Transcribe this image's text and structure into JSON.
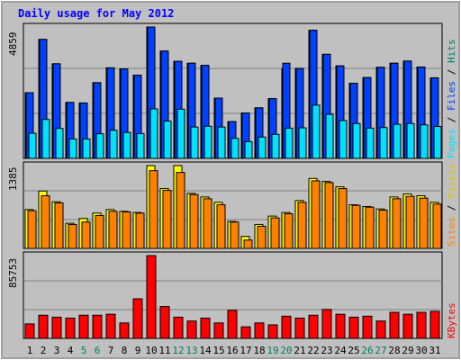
{
  "chart_data": [
    {
      "type": "bar",
      "title": "Daily usage for May 2012",
      "ymax_label": "4859",
      "legend": [
        "Pages",
        "Files",
        "Hits"
      ],
      "categories": [
        "1",
        "2",
        "3",
        "4",
        "5",
        "6",
        "7",
        "8",
        "9",
        "10",
        "11",
        "12",
        "13",
        "14",
        "15",
        "16",
        "17",
        "18",
        "19",
        "20",
        "21",
        "22",
        "23",
        "24",
        "25",
        "26",
        "27",
        "28",
        "29",
        "30",
        "31"
      ],
      "weekend_days": [
        "5",
        "6",
        "12",
        "13",
        "19",
        "20",
        "26",
        "27"
      ],
      "series": [
        {
          "name": "Hits",
          "values": [
            2430,
            4400,
            3500,
            2070,
            2050,
            2800,
            3350,
            3310,
            3080,
            4860,
            3970,
            3590,
            3520,
            3440,
            2230,
            1360,
            1680,
            1870,
            2210,
            3320,
            3330,
            4740,
            3850,
            3420,
            2780,
            2990,
            3370,
            3520,
            3600,
            3380,
            2980
          ]
        },
        {
          "name": "Files",
          "values": [
            2430,
            4400,
            3500,
            2070,
            2050,
            2800,
            3350,
            3310,
            3080,
            4860,
            3970,
            3590,
            3520,
            3440,
            2230,
            1360,
            1680,
            1870,
            2210,
            3520,
            3330,
            4740,
            3850,
            3420,
            2780,
            2990,
            3370,
            3520,
            3600,
            3380,
            2980
          ]
        },
        {
          "name": "Pages",
          "values": [
            930,
            1440,
            1110,
            720,
            720,
            910,
            1040,
            960,
            920,
            1830,
            1380,
            1820,
            1160,
            1190,
            1160,
            740,
            620,
            790,
            890,
            1120,
            1130,
            1970,
            1630,
            1400,
            1290,
            1120,
            1140,
            1260,
            1290,
            1240,
            1180
          ]
        }
      ],
      "colors": {
        "Hits": "#00805c",
        "Files": "#0040ff",
        "Pages": "#00e0ff"
      }
    },
    {
      "type": "bar",
      "ymax_label": "1385",
      "legend": [
        "Sites",
        "Visits"
      ],
      "series": [
        {
          "name": "Visits",
          "values": [
            650,
            960,
            780,
            420,
            500,
            590,
            650,
            620,
            600,
            1385,
            1000,
            1385,
            920,
            860,
            770,
            450,
            200,
            400,
            540,
            600,
            800,
            1170,
            1120,
            1030,
            730,
            700,
            660,
            860,
            910,
            880,
            770
          ]
        },
        {
          "name": "Sites",
          "values": [
            630,
            880,
            760,
            400,
            440,
            550,
            620,
            610,
            590,
            1300,
            970,
            1270,
            900,
            830,
            730,
            440,
            140,
            370,
            510,
            580,
            770,
            1130,
            1100,
            1000,
            720,
            690,
            640,
            830,
            870,
            840,
            740
          ]
        }
      ],
      "colors": {
        "Visits": "#ffff00",
        "Sites": "#ff8000"
      }
    },
    {
      "type": "bar",
      "ymax_label": "85753",
      "legend": [
        "KBytes"
      ],
      "series": [
        {
          "name": "KBytes",
          "values": [
            15000,
            24000,
            22000,
            21000,
            24000,
            24000,
            25000,
            16000,
            41000,
            85753,
            33000,
            22000,
            18000,
            21000,
            16000,
            29000,
            12000,
            16000,
            14000,
            23000,
            21000,
            24000,
            30000,
            25000,
            22000,
            23000,
            18000,
            27000,
            25000,
            27000,
            28000
          ]
        }
      ],
      "colors": {
        "KBytes": "#ff0000"
      }
    }
  ]
}
